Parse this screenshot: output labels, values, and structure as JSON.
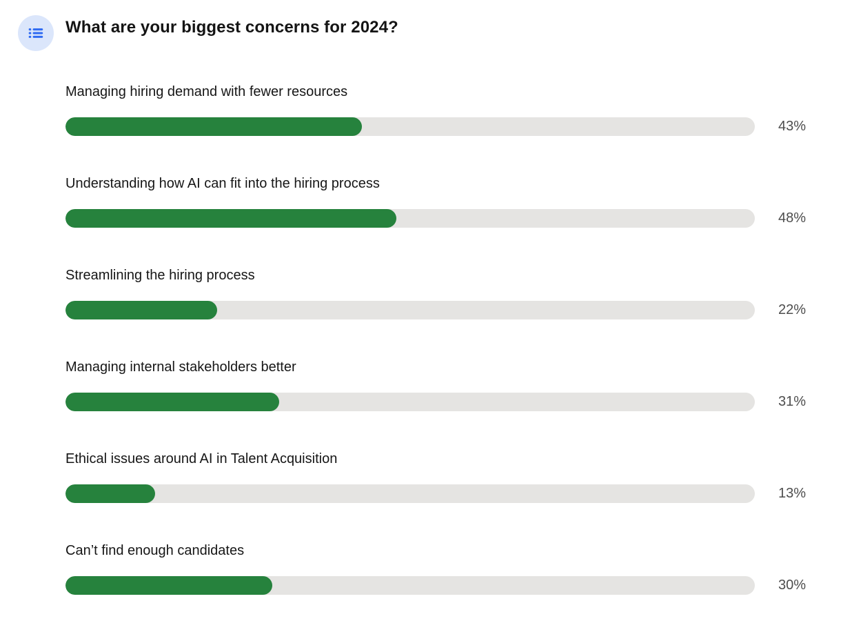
{
  "poll": {
    "title": "What are your biggest concerns for 2024?",
    "icon": "list-icon",
    "colors": {
      "bar_fill": "#26823d",
      "bar_track": "#e5e4e2",
      "icon_blue": "#2f6bf2",
      "icon_bg": "#dbe6fb",
      "percent_text": "#4d4d4d",
      "label_text": "#161616"
    },
    "options": [
      {
        "label": "Managing hiring demand with fewer resources",
        "percent": 43,
        "percent_label": "43%"
      },
      {
        "label": "Understanding how AI can fit into the hiring process",
        "percent": 48,
        "percent_label": "48%"
      },
      {
        "label": "Streamlining the hiring process",
        "percent": 22,
        "percent_label": "22%"
      },
      {
        "label": "Managing internal stakeholders better",
        "percent": 31,
        "percent_label": "31%"
      },
      {
        "label": "Ethical issues around AI in Talent Acquisition",
        "percent": 13,
        "percent_label": "13%"
      },
      {
        "label": "Can’t find enough candidates",
        "percent": 30,
        "percent_label": "30%"
      }
    ]
  },
  "chart_data": {
    "type": "bar",
    "orientation": "horizontal",
    "title": "What are your biggest concerns for 2024?",
    "categories": [
      "Managing hiring demand with fewer resources",
      "Understanding how AI can fit into the hiring process",
      "Streamlining the hiring process",
      "Managing internal stakeholders better",
      "Ethical issues around AI in Talent Acquisition",
      "Can’t find enough candidates"
    ],
    "values": [
      43,
      48,
      22,
      31,
      13,
      30
    ],
    "unit": "%",
    "value_labels": [
      "43%",
      "48%",
      "22%",
      "31%",
      "13%",
      "30%"
    ],
    "xlabel": "",
    "ylabel": "",
    "xlim": [
      0,
      100
    ],
    "grid": false,
    "legend": false,
    "bar_color": "#26823d",
    "track_color": "#e5e4e2"
  }
}
